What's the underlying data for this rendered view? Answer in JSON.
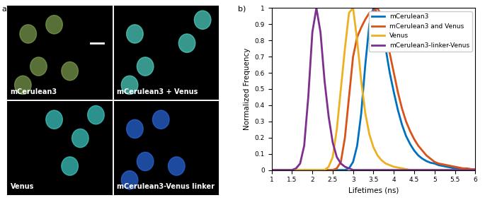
{
  "images": {
    "label": "a)",
    "tiles": [
      "mCerulean3",
      "mCerulean3 + Venus",
      "Venus",
      "mCerulean3-Venus linker"
    ]
  },
  "chart_data": {
    "label": "b)",
    "type": "line",
    "x_label": "Lifetimes (ns)",
    "y_label": "Normalized Frequency",
    "x": [
      1,
      1.1,
      1.2,
      1.3,
      1.4,
      1.5,
      1.6,
      1.7,
      1.8,
      1.9,
      2,
      2.1,
      2.2,
      2.3,
      2.4,
      2.5,
      2.6,
      2.7,
      2.8,
      2.9,
      3,
      3.1,
      3.2,
      3.3,
      3.4,
      3.5,
      3.6,
      3.7,
      3.8,
      3.9,
      4,
      4.1,
      4.2,
      4.3,
      4.4,
      4.5,
      4.6,
      4.7,
      4.8,
      4.9,
      5,
      5.1,
      5.2,
      5.3,
      5.4,
      5.5,
      5.6,
      5.7,
      5.8,
      5.9,
      6
    ],
    "series": [
      {
        "name": "mCerulean3",
        "color": "#0072BD",
        "values": [
          0,
          0,
          0,
          0,
          0,
          0,
          0,
          0,
          0,
          0,
          0,
          0,
          0,
          0,
          0,
          0,
          0,
          0,
          0,
          0.01,
          0.05,
          0.15,
          0.35,
          0.65,
          0.9,
          1.0,
          0.97,
          0.88,
          0.75,
          0.6,
          0.48,
          0.37,
          0.28,
          0.21,
          0.16,
          0.12,
          0.09,
          0.07,
          0.055,
          0.045,
          0.04,
          0.03,
          0.025,
          0.02,
          0.015,
          0.01,
          0.01,
          0.005,
          0.005,
          0,
          0
        ]
      },
      {
        "name": "mCerulean3 and Venus",
        "color": "#D95319",
        "values": [
          0,
          0,
          0,
          0,
          0,
          0,
          0,
          0,
          0,
          0,
          0,
          0,
          0,
          0,
          0,
          0,
          0.01,
          0.05,
          0.2,
          0.45,
          0.7,
          0.82,
          0.88,
          0.93,
          0.97,
          0.98,
          1.0,
          0.95,
          0.85,
          0.72,
          0.6,
          0.48,
          0.38,
          0.3,
          0.24,
          0.19,
          0.15,
          0.12,
          0.09,
          0.07,
          0.05,
          0.04,
          0.035,
          0.03,
          0.025,
          0.02,
          0.015,
          0.01,
          0.01,
          0.005,
          0.005
        ]
      },
      {
        "name": "Venus",
        "color": "#EDB120",
        "values": [
          0,
          0,
          0,
          0,
          0,
          0,
          0,
          0,
          0,
          0,
          0,
          0,
          0,
          0,
          0.02,
          0.08,
          0.25,
          0.5,
          0.75,
          0.97,
          1.0,
          0.8,
          0.55,
          0.35,
          0.22,
          0.14,
          0.09,
          0.06,
          0.04,
          0.03,
          0.02,
          0.015,
          0.01,
          0.005,
          0,
          0,
          0,
          0,
          0,
          0,
          0,
          0,
          0,
          0,
          0,
          0,
          0,
          0,
          0,
          0,
          0
        ]
      },
      {
        "name": "mCerulean3-linker-Venus",
        "color": "#7E2F8E",
        "values": [
          0,
          0,
          0,
          0,
          0,
          0,
          0.01,
          0.04,
          0.15,
          0.45,
          0.85,
          1.0,
          0.85,
          0.55,
          0.33,
          0.17,
          0.08,
          0.04,
          0.02,
          0.01,
          0,
          0,
          0,
          0,
          0,
          0,
          0,
          0,
          0,
          0,
          0,
          0,
          0,
          0,
          0,
          0,
          0,
          0,
          0,
          0,
          0,
          0,
          0,
          0,
          0,
          0,
          0,
          0,
          0,
          0,
          0
        ]
      }
    ],
    "xlim": [
      1,
      6
    ],
    "xticks": [
      1,
      1.5,
      2,
      2.5,
      3,
      3.5,
      4,
      4.5,
      5,
      5.5,
      6
    ],
    "ylim": [
      0,
      1
    ],
    "yticks": [
      0,
      0.1,
      0.2,
      0.3,
      0.4,
      0.5,
      0.6,
      0.7,
      0.8,
      0.9,
      1
    ],
    "legend": "upper right"
  }
}
